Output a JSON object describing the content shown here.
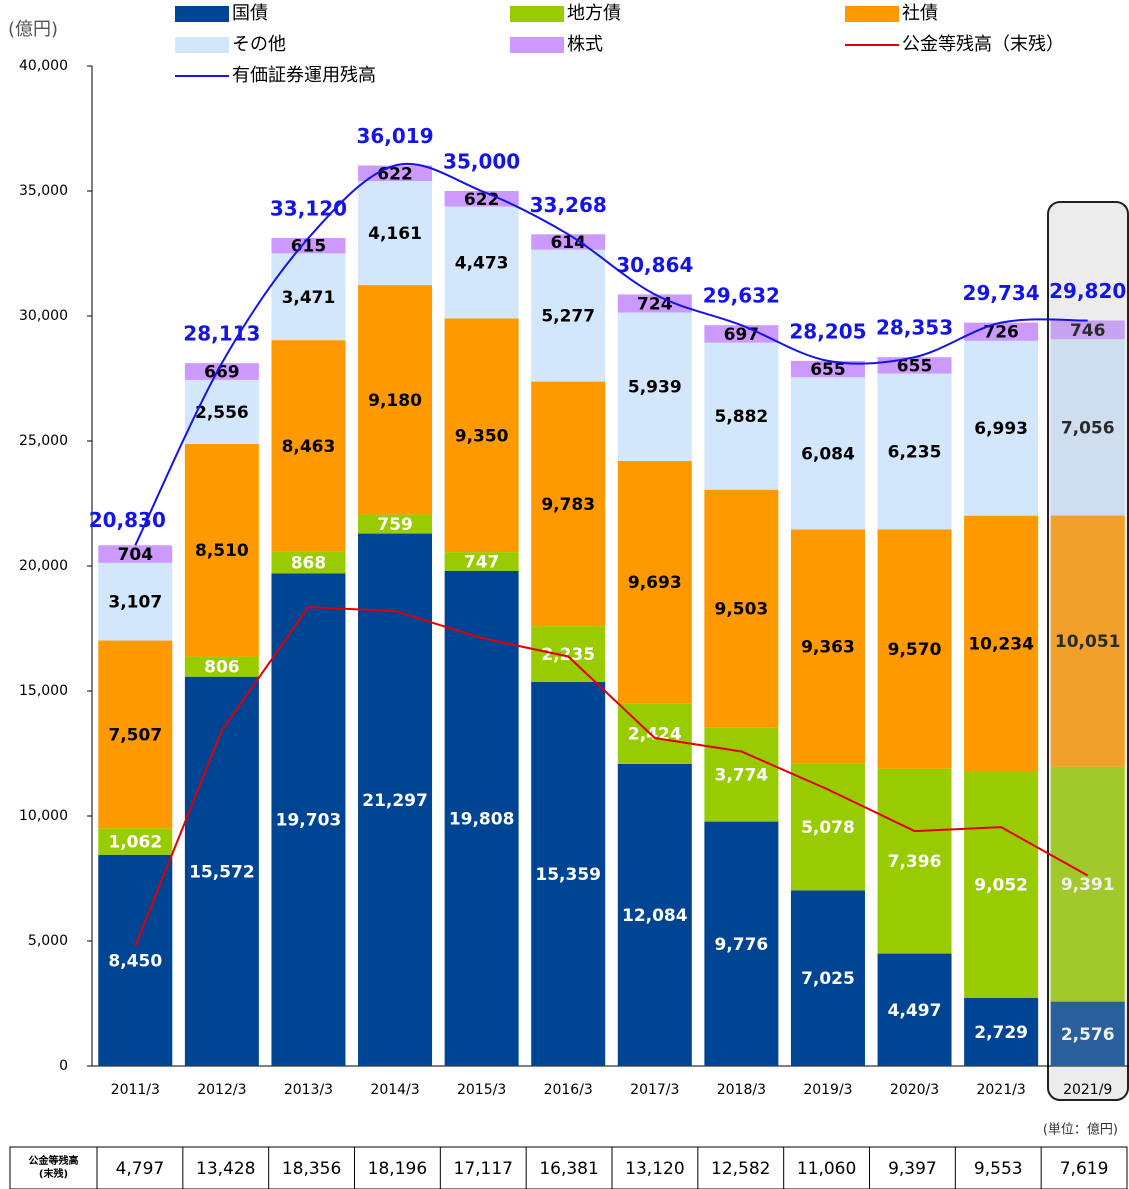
{
  "chart_data": {
    "type": "stacked-bar-line",
    "y_unit": "(億円)",
    "unit_note": "(単位：億円)",
    "table_label": [
      "公金等残高",
      "(末残)"
    ],
    "categories": [
      "2011/3",
      "2012/3",
      "2013/3",
      "2014/3",
      "2015/3",
      "2016/3",
      "2017/3",
      "2018/3",
      "2019/3",
      "2020/3",
      "2021/3",
      "2021/9"
    ],
    "ylim": [
      0,
      40000
    ],
    "yticks": [
      0,
      {
        "value": 5000,
        "label": "5,000"
      },
      {
        "value": 10000,
        "label": "10,000"
      },
      {
        "value": 15000,
        "label": "15,000"
      },
      {
        "value": 20000,
        "label": "20,000"
      },
      {
        "value": 25000,
        "label": "25,000"
      },
      {
        "value": 30000,
        "label": "30,000"
      },
      {
        "value": 35000,
        "label": "35,000"
      },
      {
        "value": 40000,
        "label": "40,000"
      }
    ],
    "series": [
      {
        "name": "国債",
        "kind": "bar",
        "color": "#004494",
        "label_color": "#ffffff",
        "values": [
          8450,
          15572,
          19703,
          21297,
          19808,
          15359,
          12084,
          9776,
          7025,
          4497,
          2729,
          2576
        ],
        "value_labels": [
          "8,450",
          "15,572",
          "19,703",
          "21,297",
          "19,808",
          "15,359",
          "12,084",
          "9,776",
          "7,025",
          "4,497",
          "2,729",
          "2,576"
        ]
      },
      {
        "name": "地方債",
        "kind": "bar",
        "color": "#99cc00",
        "label_color": "#ffffff",
        "values": [
          1062,
          806,
          868,
          759,
          747,
          2235,
          2424,
          3774,
          5078,
          7396,
          9052,
          9391
        ],
        "value_labels": [
          "1,062",
          "806",
          "868",
          "759",
          "747",
          "2,235",
          "2,424",
          "3,774",
          "5,078",
          "7,396",
          "9,052",
          "9,391"
        ]
      },
      {
        "name": "社債",
        "kind": "bar",
        "color": "#ff9900",
        "label_color": "#000000",
        "values": [
          7507,
          8510,
          8463,
          9180,
          9350,
          9783,
          9693,
          9503,
          9363,
          9570,
          10234,
          10051
        ],
        "value_labels": [
          "7,507",
          "8,510",
          "8,463",
          "9,180",
          "9,350",
          "9,783",
          "9,693",
          "9,503",
          "9,363",
          "9,570",
          "10,234",
          "10,051"
        ]
      },
      {
        "name": "その他",
        "kind": "bar",
        "color": "#d2e7fc",
        "label_color": "#000000",
        "values": [
          3107,
          2556,
          3471,
          4161,
          4473,
          5277,
          5939,
          5882,
          6084,
          6235,
          6993,
          7056
        ],
        "value_labels": [
          "3,107",
          "2,556",
          "3,471",
          "4,161",
          "4,473",
          "5,277",
          "5,939",
          "5,882",
          "6,084",
          "6,235",
          "6,993",
          "7,056"
        ]
      },
      {
        "name": "株式",
        "kind": "bar",
        "color": "#cc99ff",
        "label_color": "#000000",
        "values": [
          704,
          669,
          615,
          622,
          622,
          614,
          724,
          697,
          655,
          655,
          726,
          746
        ],
        "value_labels": [
          "704",
          "669",
          "615",
          "622",
          "622",
          "614",
          "724",
          "697",
          "655",
          "655",
          "726",
          "746"
        ]
      },
      {
        "name": "公金等残高（末残）",
        "kind": "line",
        "color": "#e00000",
        "smooth": false,
        "values": [
          4797,
          13428,
          18356,
          18196,
          17117,
          16381,
          13120,
          12582,
          11060,
          9397,
          9553,
          7619
        ],
        "value_labels": [
          "4,797",
          "13,428",
          "18,356",
          "18,196",
          "17,117",
          "16,381",
          "13,120",
          "12,582",
          "11,060",
          "9,397",
          "9,553",
          "7,619"
        ]
      },
      {
        "name": "有価証券運用残高",
        "kind": "line",
        "color": "#1414e6",
        "smooth": true,
        "values": [
          20830,
          28113,
          33120,
          36019,
          35000,
          33268,
          30864,
          29632,
          28205,
          28353,
          29734,
          29820
        ],
        "value_labels": [
          "20,830",
          "28,113",
          "33,120",
          "36,019",
          "35,000",
          "33,268",
          "30,864",
          "29,632",
          "28,205",
          "28,353",
          "29,734",
          "29,820"
        ]
      }
    ]
  }
}
